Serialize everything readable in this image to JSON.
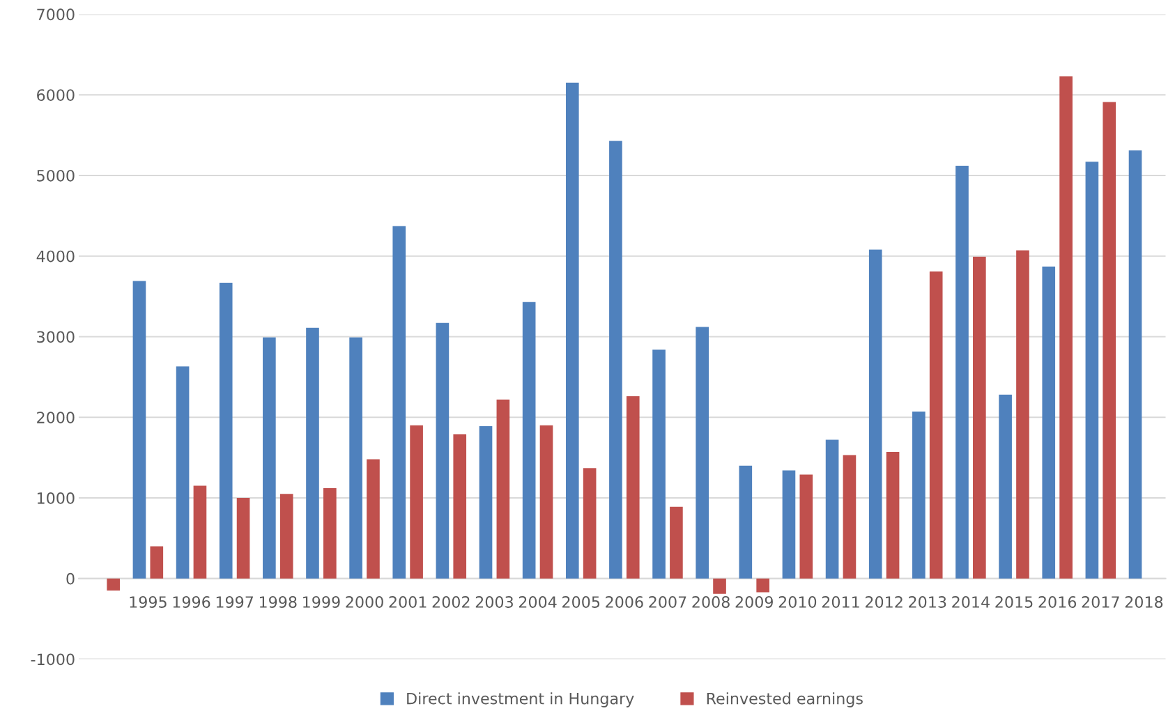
{
  "chart_data": {
    "type": "bar",
    "categories": [
      null,
      "1995",
      "1996",
      "1997",
      "1998",
      "1999",
      "2000",
      "2001",
      "2002",
      "2003",
      "2004",
      "2005",
      "2006",
      "2007",
      "2008",
      "2009",
      "2010",
      "2011",
      "2012",
      "2013",
      "2014",
      "2015",
      "2016",
      "2017",
      "2018"
    ],
    "series": [
      {
        "name": "Direct investment in Hungary",
        "color": "#4f81bd",
        "values": [
          null,
          3690,
          2630,
          3670,
          2990,
          3110,
          2990,
          4370,
          3170,
          1890,
          3430,
          6150,
          5430,
          2840,
          3120,
          1400,
          1340,
          1720,
          4080,
          2070,
          5120,
          2280,
          3870,
          5170,
          5310
        ]
      },
      {
        "name": "Reinvested earnings",
        "color": "#c0504d",
        "values": [
          -150,
          400,
          1150,
          1000,
          1050,
          1120,
          1480,
          1900,
          1790,
          2220,
          1900,
          1370,
          2260,
          890,
          -190,
          -170,
          1290,
          1530,
          1570,
          3810,
          3990,
          4070,
          6230,
          5910,
          null
        ]
      }
    ],
    "ylim": [
      -1000,
      7000
    ],
    "yticks": [
      -1000,
      0,
      1000,
      2000,
      3000,
      4000,
      5000,
      6000,
      7000
    ],
    "grid": "y",
    "legend": "bottom"
  }
}
